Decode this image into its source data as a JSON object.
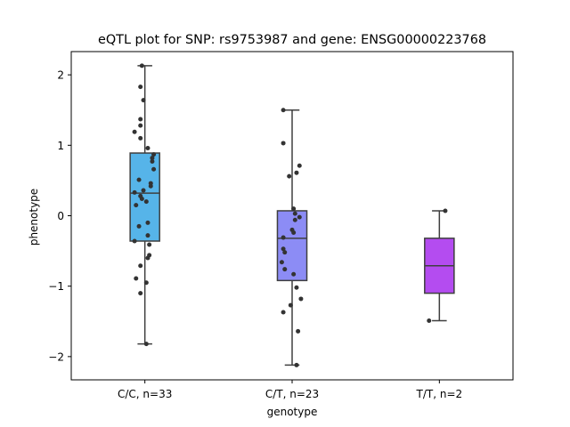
{
  "chart_data": {
    "type": "box",
    "title": "eQTL plot for SNP: rs9753987 and gene: ENSG00000223768",
    "xlabel": "genotype",
    "ylabel": "phenotype",
    "ylim": [
      -2.33,
      2.33
    ],
    "yticks": [
      -2,
      -1,
      0,
      1,
      2
    ],
    "ytick_labels": [
      "−2",
      "−1",
      "0",
      "1",
      "2"
    ],
    "grid": false,
    "categories": [
      "C/C, n=33",
      "C/T, n=23",
      "T/T, n=2"
    ],
    "boxes": [
      {
        "category": "C/C, n=33",
        "color": "#56b4e9",
        "whisker_low": -1.82,
        "q1": -0.36,
        "median": 0.32,
        "q3": 0.89,
        "whisker_high": 2.13,
        "points": [
          {
            "dx": -0.02,
            "y": 2.13
          },
          {
            "dx": -0.03,
            "y": 1.83
          },
          {
            "dx": -0.01,
            "y": 1.64
          },
          {
            "dx": -0.03,
            "y": 1.37
          },
          {
            "dx": -0.03,
            "y": 1.28
          },
          {
            "dx": -0.07,
            "y": 1.19
          },
          {
            "dx": -0.03,
            "y": 1.1
          },
          {
            "dx": 0.02,
            "y": 0.96
          },
          {
            "dx": 0.06,
            "y": 0.87
          },
          {
            "dx": 0.05,
            "y": 0.82
          },
          {
            "dx": 0.05,
            "y": 0.77
          },
          {
            "dx": 0.06,
            "y": 0.66
          },
          {
            "dx": -0.04,
            "y": 0.51
          },
          {
            "dx": 0.04,
            "y": 0.46
          },
          {
            "dx": 0.04,
            "y": 0.42
          },
          {
            "dx": -0.01,
            "y": 0.36
          },
          {
            "dx": -0.07,
            "y": 0.33
          },
          {
            "dx": -0.03,
            "y": 0.28
          },
          {
            "dx": -0.02,
            "y": 0.24
          },
          {
            "dx": 0.01,
            "y": 0.2
          },
          {
            "dx": -0.06,
            "y": 0.15
          },
          {
            "dx": 0.02,
            "y": -0.1
          },
          {
            "dx": -0.04,
            "y": -0.15
          },
          {
            "dx": 0.02,
            "y": -0.28
          },
          {
            "dx": -0.07,
            "y": -0.36
          },
          {
            "dx": 0.03,
            "y": -0.41
          },
          {
            "dx": 0.03,
            "y": -0.56
          },
          {
            "dx": 0.02,
            "y": -0.6
          },
          {
            "dx": -0.03,
            "y": -0.71
          },
          {
            "dx": -0.06,
            "y": -0.89
          },
          {
            "dx": 0.01,
            "y": -0.95
          },
          {
            "dx": -0.03,
            "y": -1.1
          },
          {
            "dx": 0.01,
            "y": -1.82
          }
        ]
      },
      {
        "category": "C/T, n=23",
        "color": "#8c8cf5",
        "whisker_low": -2.12,
        "q1": -0.92,
        "median": -0.32,
        "q3": 0.07,
        "whisker_high": 1.5,
        "points": [
          {
            "dx": -0.06,
            "y": 1.5
          },
          {
            "dx": -0.06,
            "y": 1.03
          },
          {
            "dx": 0.05,
            "y": 0.71
          },
          {
            "dx": -0.02,
            "y": 0.56
          },
          {
            "dx": 0.03,
            "y": 0.61
          },
          {
            "dx": 0.01,
            "y": 0.1
          },
          {
            "dx": 0.02,
            "y": 0.03
          },
          {
            "dx": 0.05,
            "y": -0.02
          },
          {
            "dx": 0.02,
            "y": -0.06
          },
          {
            "dx": 0.0,
            "y": -0.2
          },
          {
            "dx": 0.01,
            "y": -0.24
          },
          {
            "dx": -0.06,
            "y": -0.31
          },
          {
            "dx": -0.06,
            "y": -0.47
          },
          {
            "dx": -0.05,
            "y": -0.52
          },
          {
            "dx": -0.07,
            "y": -0.66
          },
          {
            "dx": -0.05,
            "y": -0.76
          },
          {
            "dx": 0.01,
            "y": -0.83
          },
          {
            "dx": 0.03,
            "y": -1.02
          },
          {
            "dx": 0.06,
            "y": -1.18
          },
          {
            "dx": -0.01,
            "y": -1.27
          },
          {
            "dx": -0.06,
            "y": -1.37
          },
          {
            "dx": 0.04,
            "y": -1.64
          },
          {
            "dx": 0.03,
            "y": -2.12
          }
        ]
      },
      {
        "category": "T/T, n=2",
        "color": "#b44cf0",
        "whisker_low": -1.49,
        "q1": -1.1,
        "median": -0.71,
        "q3": -0.32,
        "whisker_high": 0.07,
        "points": [
          {
            "dx": 0.04,
            "y": 0.07
          },
          {
            "dx": -0.07,
            "y": -1.49
          }
        ]
      }
    ]
  }
}
